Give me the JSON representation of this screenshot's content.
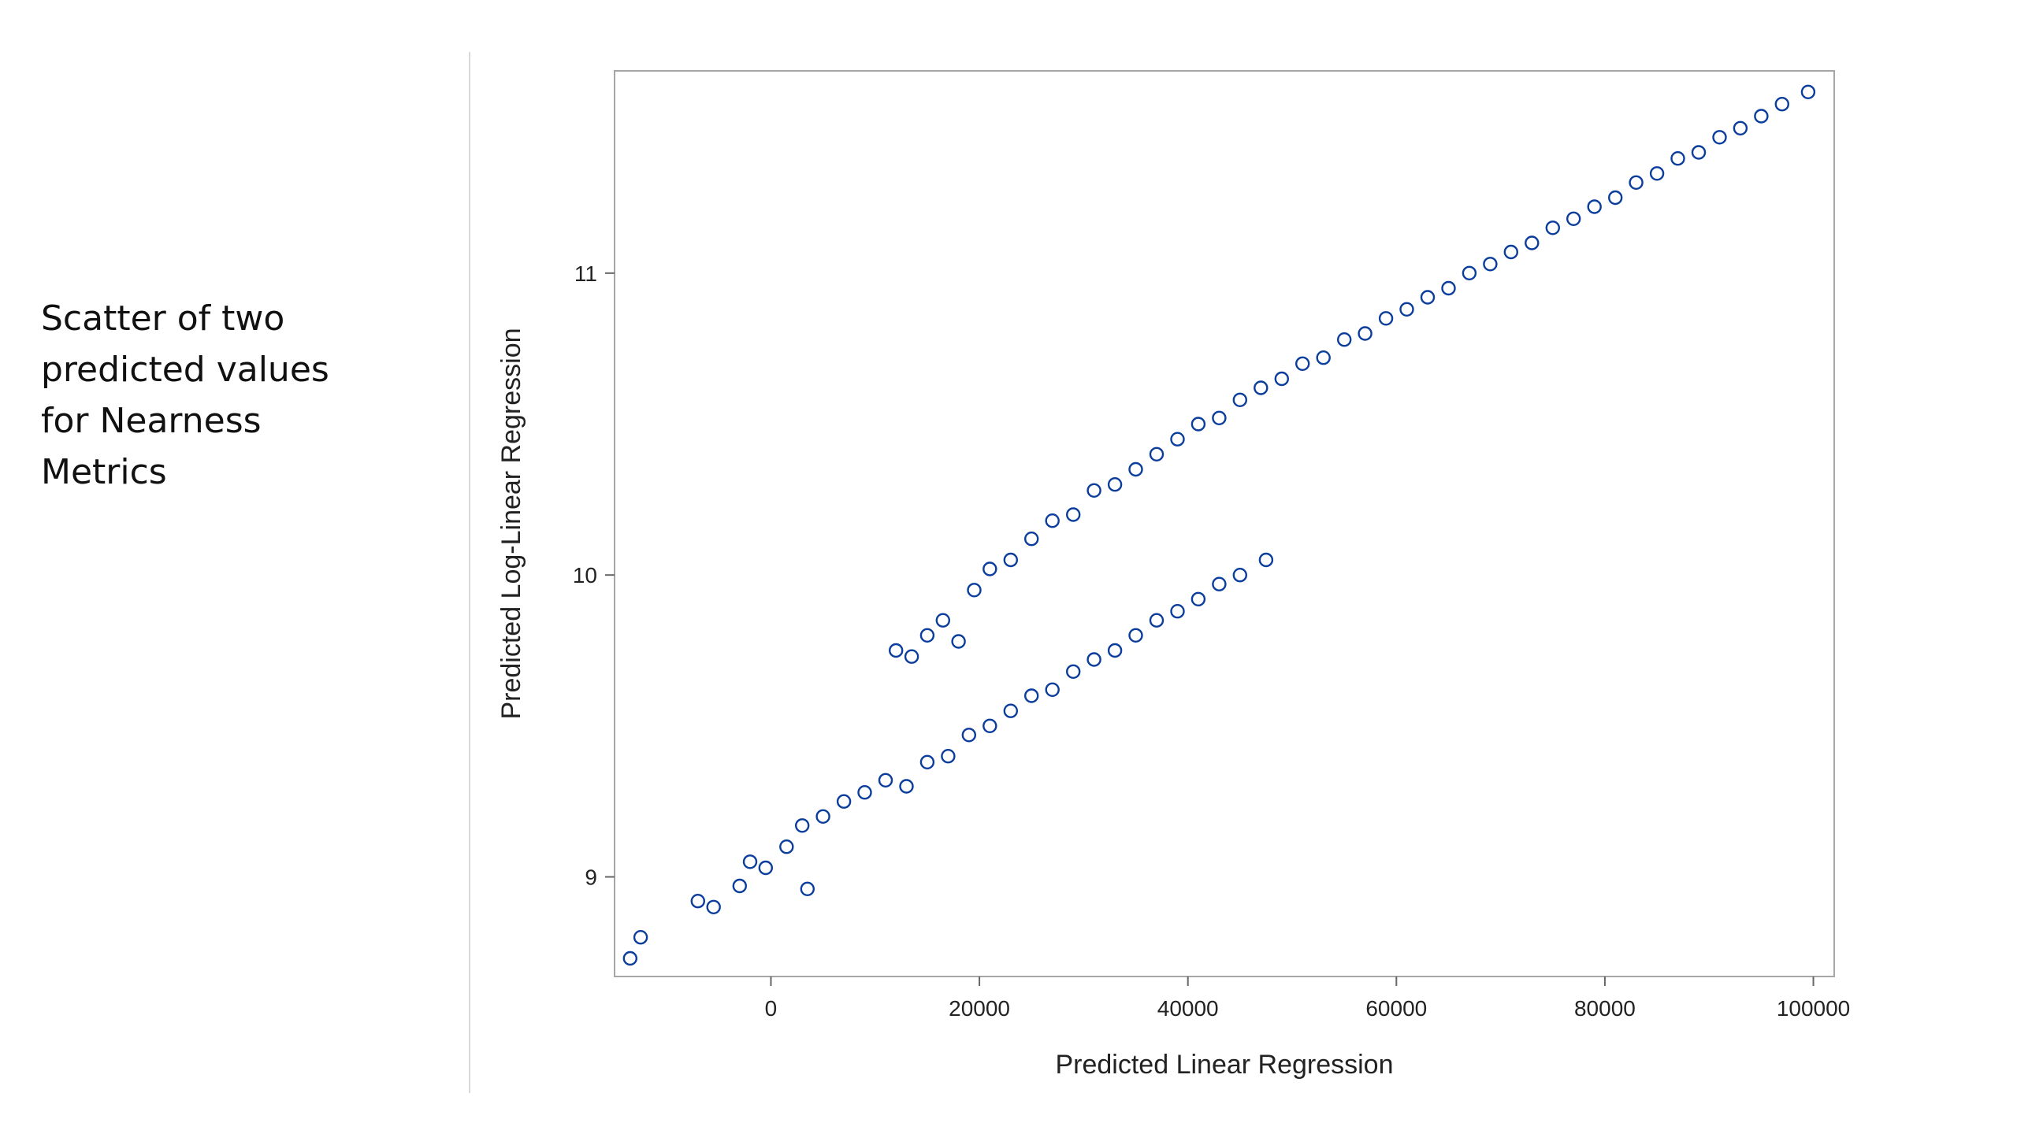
{
  "caption": {
    "lines": [
      "Scatter of two",
      "predicted values",
      "for Nearness",
      "Metrics"
    ]
  },
  "chart_data": {
    "type": "scatter",
    "title": "",
    "xlabel": "Predicted Linear Regression",
    "ylabel": "Predicted Log-Linear Regression",
    "xlim": [
      -15000,
      102000
    ],
    "ylim": [
      8.67,
      11.67
    ],
    "x_ticks": [
      0,
      20000,
      40000,
      60000,
      80000,
      100000
    ],
    "y_ticks": [
      9,
      10,
      11
    ],
    "x_tick_labels": [
      "0",
      "20000",
      "40000",
      "60000",
      "80000",
      "100000"
    ],
    "y_tick_labels": [
      "9",
      "10",
      "11"
    ],
    "grid": false,
    "legend": "none",
    "marker": "open-circle",
    "marker_color": "#0a3d9c",
    "series": [
      {
        "cluster": "upper",
        "points": [
          [
            12000,
            9.75
          ],
          [
            13500,
            9.73
          ],
          [
            15000,
            9.8
          ],
          [
            16500,
            9.85
          ],
          [
            18000,
            9.78
          ],
          [
            19500,
            9.95
          ],
          [
            21000,
            10.02
          ],
          [
            23000,
            10.05
          ],
          [
            25000,
            10.12
          ],
          [
            27000,
            10.18
          ],
          [
            29000,
            10.2
          ],
          [
            31000,
            10.28
          ],
          [
            33000,
            10.3
          ],
          [
            35000,
            10.35
          ],
          [
            37000,
            10.4
          ],
          [
            39000,
            10.45
          ],
          [
            41000,
            10.5
          ],
          [
            43000,
            10.52
          ],
          [
            45000,
            10.58
          ],
          [
            47000,
            10.62
          ],
          [
            49000,
            10.65
          ],
          [
            51000,
            10.7
          ],
          [
            53000,
            10.72
          ],
          [
            55000,
            10.78
          ],
          [
            57000,
            10.8
          ],
          [
            59000,
            10.85
          ],
          [
            61000,
            10.88
          ],
          [
            63000,
            10.92
          ],
          [
            65000,
            10.95
          ],
          [
            67000,
            11.0
          ],
          [
            69000,
            11.03
          ],
          [
            71000,
            11.07
          ],
          [
            73000,
            11.1
          ],
          [
            75000,
            11.15
          ],
          [
            77000,
            11.18
          ],
          [
            79000,
            11.22
          ],
          [
            81000,
            11.25
          ],
          [
            83000,
            11.3
          ],
          [
            85000,
            11.33
          ],
          [
            87000,
            11.38
          ],
          [
            89000,
            11.4
          ],
          [
            91000,
            11.45
          ],
          [
            93000,
            11.48
          ],
          [
            95000,
            11.52
          ],
          [
            97000,
            11.56
          ],
          [
            99500,
            11.6
          ]
        ]
      },
      {
        "cluster": "lower",
        "points": [
          [
            -13500,
            8.73
          ],
          [
            -12500,
            8.8
          ],
          [
            -7000,
            8.92
          ],
          [
            -5500,
            8.9
          ],
          [
            -3000,
            8.97
          ],
          [
            -2000,
            9.05
          ],
          [
            -500,
            9.03
          ],
          [
            1500,
            9.1
          ],
          [
            3000,
            9.17
          ],
          [
            3500,
            8.96
          ],
          [
            5000,
            9.2
          ],
          [
            7000,
            9.25
          ],
          [
            9000,
            9.28
          ],
          [
            11000,
            9.32
          ],
          [
            13000,
            9.3
          ],
          [
            15000,
            9.38
          ],
          [
            17000,
            9.4
          ],
          [
            19000,
            9.47
          ],
          [
            21000,
            9.5
          ],
          [
            23000,
            9.55
          ],
          [
            25000,
            9.6
          ],
          [
            27000,
            9.62
          ],
          [
            29000,
            9.68
          ],
          [
            31000,
            9.72
          ],
          [
            33000,
            9.75
          ],
          [
            35000,
            9.8
          ],
          [
            37000,
            9.85
          ],
          [
            39000,
            9.88
          ],
          [
            41000,
            9.92
          ],
          [
            43000,
            9.97
          ],
          [
            45000,
            10.0
          ],
          [
            47500,
            10.05
          ]
        ]
      }
    ]
  }
}
